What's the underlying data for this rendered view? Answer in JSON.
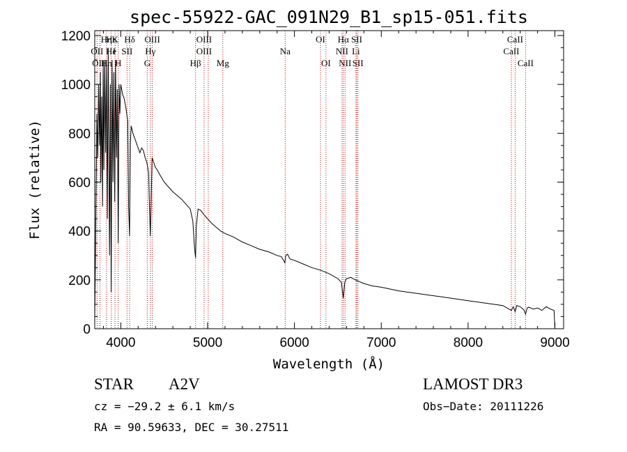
{
  "chart_data": {
    "type": "line",
    "title": "spec-55922-GAC_091N29_B1_sp15-051.fits",
    "xlabel": "Wavelength (Å)",
    "ylabel": "Flux (relative)",
    "xlim": [
      3700,
      9100
    ],
    "ylim": [
      0,
      1220
    ],
    "xticks": [
      "4000",
      "5000",
      "6000",
      "7000",
      "8000",
      "9000"
    ],
    "yticks": [
      "0",
      "200",
      "400",
      "600",
      "800",
      "1000",
      "1200"
    ],
    "series": [
      {
        "name": "spectrum",
        "x": [
          3700,
          3710,
          3725,
          3735,
          3745,
          3755,
          3765,
          3770,
          3780,
          3790,
          3797,
          3805,
          3815,
          3825,
          3835,
          3845,
          3855,
          3870,
          3880,
          3889,
          3900,
          3910,
          3920,
          3930,
          3940,
          3950,
          3960,
          3970,
          3980,
          3990,
          4000,
          4020,
          4040,
          4060,
          4080,
          4090,
          4101,
          4110,
          4120,
          4140,
          4160,
          4180,
          4200,
          4220,
          4240,
          4260,
          4280,
          4300,
          4320,
          4330,
          4340,
          4350,
          4360,
          4380,
          4400,
          4420,
          4450,
          4500,
          4550,
          4600,
          4650,
          4700,
          4750,
          4800,
          4830,
          4850,
          4861,
          4870,
          4890,
          4920,
          4950,
          5000,
          5050,
          5100,
          5150,
          5200,
          5300,
          5400,
          5500,
          5600,
          5700,
          5800,
          5850,
          5890,
          5900,
          5920,
          5950,
          6000,
          6100,
          6200,
          6300,
          6400,
          6500,
          6540,
          6563,
          6580,
          6600,
          6650,
          6700,
          6800,
          6900,
          7000,
          7200,
          7400,
          7600,
          7800,
          8000,
          8200,
          8400,
          8498,
          8520,
          8542,
          8560,
          8600,
          8640,
          8662,
          8680,
          8700,
          8750,
          8800,
          8850,
          8900,
          8950,
          8990,
          9000
        ],
        "values": [
          40,
          350,
          880,
          700,
          1000,
          750,
          1050,
          600,
          950,
          500,
          1080,
          650,
          1100,
          720,
          1080,
          450,
          1150,
          300,
          1000,
          150,
          1100,
          600,
          1050,
          520,
          1100,
          700,
          980,
          350,
          1000,
          880,
          1000,
          960,
          940,
          900,
          850,
          500,
          380,
          760,
          830,
          800,
          780,
          760,
          740,
          720,
          740,
          730,
          700,
          680,
          640,
          500,
          380,
          520,
          700,
          680,
          660,
          650,
          630,
          600,
          580,
          560,
          545,
          530,
          510,
          490,
          440,
          330,
          290,
          420,
          490,
          485,
          470,
          450,
          430,
          415,
          400,
          390,
          375,
          355,
          340,
          325,
          315,
          300,
          295,
          270,
          300,
          305,
          285,
          280,
          265,
          250,
          240,
          225,
          205,
          190,
          125,
          190,
          205,
          210,
          200,
          185,
          175,
          170,
          155,
          145,
          135,
          125,
          115,
          105,
          95,
          75,
          90,
          70,
          95,
          90,
          78,
          60,
          85,
          88,
          80,
          85,
          75,
          90,
          80,
          75,
          0
        ]
      }
    ],
    "lines": [
      {
        "name": "Hη",
        "wl": 3835,
        "row": 0
      },
      {
        "name": "Hε",
        "wl": 3889,
        "row": 0
      },
      {
        "name": "K",
        "wl": 3934,
        "row": 0
      },
      {
        "name": "Hδ",
        "wl": 4102,
        "row": 0
      },
      {
        "name": "OIII",
        "wl": 4363,
        "row": 0
      },
      {
        "name": "OIII",
        "wl": 4959,
        "row": 0
      },
      {
        "name": "OI",
        "wl": 6300,
        "row": 0
      },
      {
        "name": "Hα",
        "wl": 6563,
        "row": 0
      },
      {
        "name": "SII",
        "wl": 6717,
        "row": 0
      },
      {
        "name": "CaII",
        "wl": 8542,
        "row": 0
      },
      {
        "name": "OII",
        "wl": 3727,
        "row": 1
      },
      {
        "name": "He",
        "wl": 3889,
        "row": 1
      },
      {
        "name": "I",
        "wl": 3925,
        "row": 1
      },
      {
        "name": "SII",
        "wl": 4072,
        "row": 1
      },
      {
        "name": "Hγ",
        "wl": 4340,
        "row": 1
      },
      {
        "name": "OIII",
        "wl": 4959,
        "row": 1
      },
      {
        "name": "Na",
        "wl": 5893,
        "row": 1
      },
      {
        "name": "NII",
        "wl": 6548,
        "row": 1
      },
      {
        "name": "Li",
        "wl": 6708,
        "row": 1
      },
      {
        "name": "CaII",
        "wl": 8498,
        "row": 1
      },
      {
        "name": "OIII",
        "wl": 3760,
        "row": 2
      },
      {
        "name": "Hn",
        "wl": 3835,
        "row": 2
      },
      {
        "name": "H",
        "wl": 3970,
        "row": 2
      },
      {
        "name": "G",
        "wl": 4305,
        "row": 2
      },
      {
        "name": "Hβ",
        "wl": 4861,
        "row": 2
      },
      {
        "name": "Mg",
        "wl": 5175,
        "row": 2
      },
      {
        "name": "OI",
        "wl": 6363,
        "row": 2
      },
      {
        "name": "NII",
        "wl": 6583,
        "row": 2
      },
      {
        "name": "SII",
        "wl": 6731,
        "row": 2
      },
      {
        "name": "CaII",
        "wl": 8662,
        "row": 2
      }
    ],
    "line_marker_wl": [
      3727,
      3760,
      3835,
      3889,
      3934,
      3970,
      4072,
      4102,
      4305,
      4340,
      4363,
      4861,
      4959,
      5007,
      5175,
      5893,
      6300,
      6363,
      6548,
      6563,
      6583,
      6708,
      6717,
      6731,
      8498,
      8542,
      8662
    ]
  },
  "info": {
    "class": "STAR",
    "subclass": "A2V",
    "survey": "LAMOST DR3",
    "cz": "cz = −29.2 ± 6.1 km/s",
    "obs_date": "Obs−Date: 20111226",
    "radec": "RA =  90.59633, DEC =  30.27511"
  }
}
